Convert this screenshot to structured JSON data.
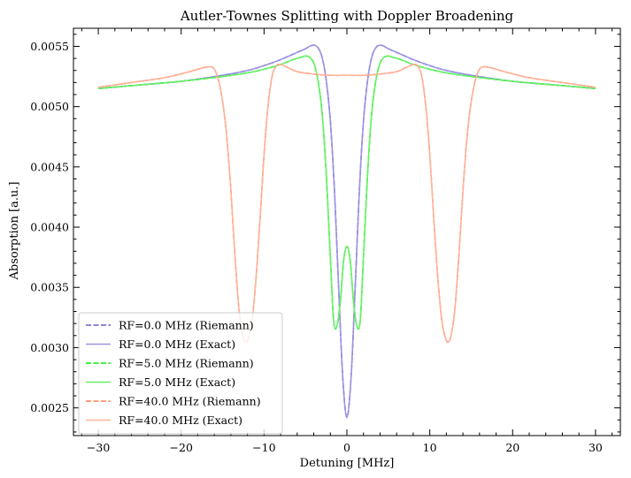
{
  "chart_data": {
    "type": "line",
    "title": "Autler-Townes Splitting with Doppler Broadening",
    "xlabel": "Detuning [MHz]",
    "ylabel": "Absorption [a.u.]",
    "xlim": [
      -33,
      33
    ],
    "ylim": [
      0.00227,
      0.00565
    ],
    "xticks": [
      -30,
      -20,
      -10,
      0,
      10,
      20,
      30
    ],
    "xtick_labels": [
      "−30",
      "−20",
      "−10",
      "0",
      "10",
      "20",
      "30"
    ],
    "yticks": [
      0.0025,
      0.003,
      0.0035,
      0.004,
      0.0045,
      0.005,
      0.0055
    ],
    "ytick_labels": [
      "0.0025",
      "0.0030",
      "0.0035",
      "0.0040",
      "0.0045",
      "0.0050",
      "0.0055"
    ],
    "grid": false,
    "legend_position": "lower-left",
    "series": [
      {
        "name": "RF=0.0 MHz (Riemann)",
        "color": "#6a5acd",
        "style": "dashed",
        "x": [
          -30,
          -25,
          -20,
          -15,
          -12,
          -10,
          -8,
          -6,
          -5,
          -4.5,
          -4,
          -3.5,
          -3,
          -2.5,
          -2,
          -1.5,
          -1,
          -0.5,
          0,
          0.5,
          1,
          1.5,
          2,
          2.5,
          3,
          3.5,
          4,
          4.5,
          5,
          6,
          8,
          10,
          12,
          15,
          20,
          25,
          30
        ],
        "y": [
          0.00515,
          0.00518,
          0.00521,
          0.00526,
          0.0053,
          0.00534,
          0.00539,
          0.00545,
          0.00548,
          0.0055,
          0.00551,
          0.00549,
          0.00541,
          0.00522,
          0.00488,
          0.0043,
          0.0035,
          0.00275,
          0.00242,
          0.00275,
          0.0035,
          0.0043,
          0.00488,
          0.00522,
          0.00541,
          0.00549,
          0.00551,
          0.0055,
          0.00548,
          0.00545,
          0.00539,
          0.00534,
          0.0053,
          0.00526,
          0.00521,
          0.00518,
          0.00515
        ]
      },
      {
        "name": "RF=0.0 MHz (Exact)",
        "color": "#9b93e0",
        "style": "solid",
        "x": [
          -30,
          -25,
          -20,
          -15,
          -12,
          -10,
          -8,
          -6,
          -5,
          -4.5,
          -4,
          -3.5,
          -3,
          -2.5,
          -2,
          -1.5,
          -1,
          -0.5,
          0,
          0.5,
          1,
          1.5,
          2,
          2.5,
          3,
          3.5,
          4,
          4.5,
          5,
          6,
          8,
          10,
          12,
          15,
          20,
          25,
          30
        ],
        "y": [
          0.00515,
          0.00518,
          0.00521,
          0.00526,
          0.0053,
          0.00534,
          0.00539,
          0.00545,
          0.00548,
          0.0055,
          0.00551,
          0.00549,
          0.00541,
          0.00522,
          0.00488,
          0.0043,
          0.0035,
          0.00275,
          0.00242,
          0.00275,
          0.0035,
          0.0043,
          0.00488,
          0.00522,
          0.00541,
          0.00549,
          0.00551,
          0.0055,
          0.00548,
          0.00545,
          0.00539,
          0.00534,
          0.0053,
          0.00526,
          0.00521,
          0.00518,
          0.00515
        ]
      },
      {
        "name": "RF=5.0 MHz (Riemann)",
        "color": "#00ee00",
        "style": "dashed",
        "x": [
          -30,
          -25,
          -20,
          -15,
          -12,
          -10,
          -8,
          -6.5,
          -5.5,
          -5,
          -4.5,
          -4,
          -3.5,
          -3,
          -2.5,
          -2,
          -1.6,
          -1.2,
          -0.8,
          -0.4,
          0,
          0.4,
          0.8,
          1.2,
          1.6,
          2,
          2.5,
          3,
          3.5,
          4,
          4.5,
          5,
          5.5,
          6.5,
          8,
          10,
          12,
          15,
          20,
          25,
          30
        ],
        "y": [
          0.00515,
          0.00518,
          0.00521,
          0.00525,
          0.00528,
          0.00531,
          0.00535,
          0.00539,
          0.00541,
          0.00542,
          0.00541,
          0.00536,
          0.00522,
          0.00495,
          0.00445,
          0.00375,
          0.00322,
          0.00318,
          0.00338,
          0.00372,
          0.00384,
          0.00372,
          0.00338,
          0.00318,
          0.00322,
          0.00375,
          0.00445,
          0.00495,
          0.00522,
          0.00536,
          0.00541,
          0.00542,
          0.00541,
          0.00539,
          0.00535,
          0.00531,
          0.00528,
          0.00525,
          0.00521,
          0.00518,
          0.00515
        ]
      },
      {
        "name": "RF=5.0 MHz (Exact)",
        "color": "#66f066",
        "style": "solid",
        "x": [
          -30,
          -25,
          -20,
          -15,
          -12,
          -10,
          -8,
          -6.5,
          -5.5,
          -5,
          -4.5,
          -4,
          -3.5,
          -3,
          -2.5,
          -2,
          -1.6,
          -1.2,
          -0.8,
          -0.4,
          0,
          0.4,
          0.8,
          1.2,
          1.6,
          2,
          2.5,
          3,
          3.5,
          4,
          4.5,
          5,
          5.5,
          6.5,
          8,
          10,
          12,
          15,
          20,
          25,
          30
        ],
        "y": [
          0.00515,
          0.00518,
          0.00521,
          0.00525,
          0.00528,
          0.00531,
          0.00535,
          0.00539,
          0.00541,
          0.00542,
          0.00541,
          0.00536,
          0.00522,
          0.00495,
          0.00445,
          0.00375,
          0.00322,
          0.00318,
          0.00338,
          0.00372,
          0.00384,
          0.00372,
          0.00338,
          0.00318,
          0.00322,
          0.00375,
          0.00445,
          0.00495,
          0.00522,
          0.00536,
          0.00541,
          0.00542,
          0.00541,
          0.00539,
          0.00535,
          0.00531,
          0.00528,
          0.00525,
          0.00521,
          0.00518,
          0.00515
        ]
      },
      {
        "name": "RF=40.0 MHz (Riemann)",
        "color": "#ff7f50",
        "style": "dashed",
        "x": [
          -30,
          -26,
          -22,
          -19,
          -17.5,
          -16.5,
          -16,
          -15.5,
          -15,
          -14.5,
          -14,
          -13.5,
          -13,
          -12.5,
          -12.2,
          -12,
          -11.5,
          -11,
          -10.5,
          -10,
          -9.5,
          -9,
          -8.5,
          -8,
          -7,
          -6,
          -4,
          -2,
          0,
          2,
          4,
          6,
          7,
          8,
          8.5,
          9,
          9.5,
          10,
          10.5,
          11,
          11.5,
          12,
          12.2,
          12.5,
          13,
          13.5,
          14,
          14.5,
          15,
          15.5,
          16,
          16.5,
          17.5,
          19,
          22,
          26,
          30
        ],
        "y": [
          0.00516,
          0.0052,
          0.00524,
          0.00529,
          0.00532,
          0.00533,
          0.00531,
          0.00522,
          0.00504,
          0.00475,
          0.0043,
          0.00375,
          0.0033,
          0.00308,
          0.00305,
          0.00306,
          0.0032,
          0.00355,
          0.00405,
          0.0046,
          0.00502,
          0.00526,
          0.00534,
          0.00535,
          0.00532,
          0.00529,
          0.00527,
          0.00526,
          0.00526,
          0.00526,
          0.00527,
          0.00529,
          0.00532,
          0.00535,
          0.00534,
          0.00526,
          0.00502,
          0.0046,
          0.00405,
          0.00355,
          0.0032,
          0.00306,
          0.00305,
          0.00308,
          0.0033,
          0.00375,
          0.0043,
          0.00475,
          0.00504,
          0.00522,
          0.00531,
          0.00533,
          0.00532,
          0.00529,
          0.00524,
          0.0052,
          0.00516
        ]
      },
      {
        "name": "RF=40.0 MHz (Exact)",
        "color": "#ffb299",
        "style": "solid",
        "x": [
          -30,
          -26,
          -22,
          -19,
          -17.5,
          -16.5,
          -16,
          -15.5,
          -15,
          -14.5,
          -14,
          -13.5,
          -13,
          -12.5,
          -12.2,
          -12,
          -11.5,
          -11,
          -10.5,
          -10,
          -9.5,
          -9,
          -8.5,
          -8,
          -7,
          -6,
          -4,
          -2,
          0,
          2,
          4,
          6,
          7,
          8,
          8.5,
          9,
          9.5,
          10,
          10.5,
          11,
          11.5,
          12,
          12.2,
          12.5,
          13,
          13.5,
          14,
          14.5,
          15,
          15.5,
          16,
          16.5,
          17.5,
          19,
          22,
          26,
          30
        ],
        "y": [
          0.00516,
          0.0052,
          0.00524,
          0.00529,
          0.00532,
          0.00533,
          0.00531,
          0.00522,
          0.00504,
          0.00475,
          0.0043,
          0.00375,
          0.0033,
          0.00308,
          0.00305,
          0.00306,
          0.0032,
          0.00355,
          0.00405,
          0.0046,
          0.00502,
          0.00526,
          0.00534,
          0.00535,
          0.00532,
          0.00529,
          0.00527,
          0.00526,
          0.00526,
          0.00526,
          0.00527,
          0.00529,
          0.00532,
          0.00535,
          0.00534,
          0.00526,
          0.00502,
          0.0046,
          0.00405,
          0.00355,
          0.0032,
          0.00306,
          0.00305,
          0.00308,
          0.0033,
          0.00375,
          0.0043,
          0.00475,
          0.00504,
          0.00522,
          0.00531,
          0.00533,
          0.00532,
          0.00529,
          0.00524,
          0.0052,
          0.00516
        ]
      }
    ]
  }
}
